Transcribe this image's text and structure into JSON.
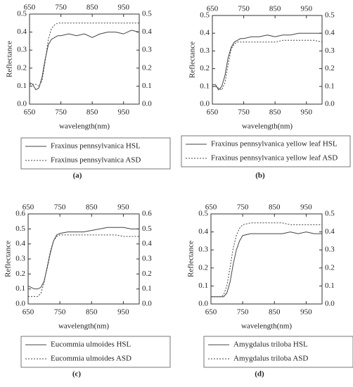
{
  "chart_data": [
    {
      "type": "line",
      "label": "(a)",
      "xlabel": "wavelength(nm)",
      "ylabel": "Reflectance",
      "x": [
        650,
        660,
        670,
        680,
        690,
        700,
        710,
        720,
        730,
        740,
        750,
        775,
        800,
        825,
        850,
        875,
        900,
        925,
        950,
        975,
        1000
      ],
      "series": [
        {
          "name": "Fraxinus pennsylvanica HSL",
          "color": "#444444",
          "style": "solid",
          "values": [
            0.12,
            0.11,
            0.08,
            0.09,
            0.15,
            0.25,
            0.33,
            0.36,
            0.37,
            0.38,
            0.38,
            0.39,
            0.38,
            0.39,
            0.37,
            0.39,
            0.4,
            0.4,
            0.39,
            0.41,
            0.4
          ]
        },
        {
          "name": "Fraxinus pennsylvanica ASD",
          "color": "#444444",
          "style": "dotted",
          "values": [
            0.11,
            0.11,
            0.11,
            0.1,
            0.13,
            0.24,
            0.36,
            0.42,
            0.44,
            0.45,
            0.45,
            0.45,
            0.45,
            0.45,
            0.45,
            0.45,
            0.45,
            0.45,
            0.45,
            0.45,
            0.45
          ]
        }
      ],
      "xlim": [
        650,
        1000
      ],
      "xticks": [
        650,
        750,
        850,
        950
      ],
      "ylim": [
        0,
        0.5
      ],
      "yticks": [
        {
          "value": 0,
          "label": "0.0"
        },
        0.1,
        0.2,
        0.3,
        0.4,
        0.5
      ]
    },
    {
      "type": "line",
      "label": "(b)",
      "xlabel": "wavelength(nm)",
      "ylabel": "Reflectance",
      "x": [
        650,
        660,
        670,
        680,
        690,
        700,
        710,
        720,
        730,
        740,
        750,
        775,
        800,
        825,
        850,
        875,
        900,
        925,
        950,
        975,
        1000
      ],
      "series": [
        {
          "name": "Fraxinus pennsylvanica yellow leaf HSL",
          "color": "#444444",
          "style": "solid",
          "values": [
            0.11,
            0.11,
            0.08,
            0.1,
            0.16,
            0.26,
            0.32,
            0.35,
            0.36,
            0.37,
            0.37,
            0.38,
            0.38,
            0.39,
            0.38,
            0.39,
            0.39,
            0.4,
            0.4,
            0.4,
            0.4
          ]
        },
        {
          "name": "Fraxinus pennsylvanica yellow leaf ASD",
          "color": "#444444",
          "style": "dotted",
          "values": [
            0.1,
            0.1,
            0.09,
            0.08,
            0.12,
            0.22,
            0.31,
            0.34,
            0.35,
            0.35,
            0.35,
            0.35,
            0.35,
            0.35,
            0.35,
            0.36,
            0.36,
            0.36,
            0.36,
            0.36,
            0.35
          ]
        }
      ],
      "xlim": [
        650,
        1000
      ],
      "xticks": [
        650,
        750,
        850,
        950
      ],
      "ylim": [
        0,
        0.5
      ],
      "yticks": [
        {
          "value": 0,
          "label": "0.0"
        },
        0.1,
        0.2,
        0.3,
        0.4,
        0.5
      ]
    },
    {
      "type": "line",
      "label": "(c)",
      "xlabel": "wavelength(nm)",
      "ylabel": "Reflectance",
      "x": [
        650,
        660,
        670,
        680,
        690,
        700,
        710,
        720,
        730,
        740,
        750,
        775,
        800,
        825,
        850,
        875,
        900,
        925,
        950,
        975,
        1000
      ],
      "series": [
        {
          "name": "Eucommia ulmoides HSL",
          "color": "#444444",
          "style": "solid",
          "values": [
            0.12,
            0.11,
            0.1,
            0.1,
            0.11,
            0.15,
            0.24,
            0.34,
            0.42,
            0.46,
            0.47,
            0.48,
            0.48,
            0.48,
            0.49,
            0.5,
            0.51,
            0.51,
            0.51,
            0.5,
            0.5
          ]
        },
        {
          "name": "Eucommia ulmoides ASD",
          "color": "#444444",
          "style": "dotted",
          "values": [
            0.05,
            0.05,
            0.05,
            0.05,
            0.07,
            0.14,
            0.25,
            0.35,
            0.42,
            0.45,
            0.46,
            0.46,
            0.46,
            0.46,
            0.46,
            0.46,
            0.46,
            0.46,
            0.45,
            0.45,
            0.45
          ]
        }
      ],
      "xlim": [
        650,
        1000
      ],
      "xticks": [
        650,
        750,
        850,
        950
      ],
      "ylim": [
        0,
        0.6
      ],
      "yticks": [
        {
          "value": 0,
          "label": "0.0"
        },
        0.1,
        0.2,
        0.3,
        0.4,
        0.5,
        0.6
      ]
    },
    {
      "type": "line",
      "label": "(d)",
      "xlabel": "wavelength(nm)",
      "ylabel": "Reflectance",
      "x": [
        650,
        660,
        670,
        680,
        690,
        700,
        710,
        720,
        730,
        740,
        750,
        775,
        800,
        825,
        850,
        875,
        900,
        925,
        950,
        975,
        1000
      ],
      "series": [
        {
          "name": "Amygdalus triloba HSL",
          "color": "#444444",
          "style": "solid",
          "values": [
            0.04,
            0.04,
            0.04,
            0.04,
            0.04,
            0.06,
            0.12,
            0.22,
            0.3,
            0.35,
            0.38,
            0.39,
            0.39,
            0.39,
            0.39,
            0.39,
            0.4,
            0.39,
            0.4,
            0.39,
            0.39
          ]
        },
        {
          "name": "Amygdalus triloba ASD",
          "color": "#444444",
          "style": "dotted",
          "values": [
            0.04,
            0.04,
            0.04,
            0.04,
            0.05,
            0.1,
            0.2,
            0.31,
            0.38,
            0.42,
            0.44,
            0.45,
            0.45,
            0.45,
            0.45,
            0.45,
            0.44,
            0.44,
            0.44,
            0.44,
            0.44
          ]
        }
      ],
      "xlim": [
        650,
        1000
      ],
      "xticks": [
        650,
        750,
        850,
        950
      ],
      "ylim": [
        0,
        0.5
      ],
      "yticks": [
        {
          "value": 0,
          "label": "0.0"
        },
        0.1,
        0.2,
        0.3,
        0.4,
        0.5
      ]
    }
  ]
}
